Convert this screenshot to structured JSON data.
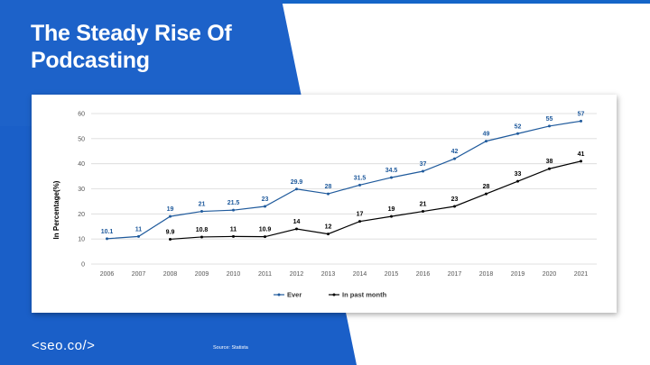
{
  "slide": {
    "title": "The Steady Rise Of Podcasting",
    "logo_text": "<seo.co/>",
    "source_text": "Source: Statista",
    "colors": {
      "brand_blue": "#1a5fc8",
      "ever_line": "#1f5a9c",
      "past_month_line": "#000000"
    }
  },
  "chart_data": {
    "type": "line",
    "title": "",
    "xlabel": "",
    "ylabel": "In Percentage(%)",
    "ylim": [
      0,
      60
    ],
    "yticks": [
      0,
      10,
      20,
      30,
      40,
      50,
      60
    ],
    "grid": true,
    "legend_position": "bottom",
    "categories": [
      "2006",
      "2007",
      "2008",
      "2009",
      "2010",
      "2011",
      "2012",
      "2013",
      "2014",
      "2015",
      "2016",
      "2017",
      "2018",
      "2019",
      "2020",
      "2021"
    ],
    "series": [
      {
        "name": "Ever",
        "color": "#1f5a9c",
        "values": [
          10.1,
          11,
          19,
          21,
          21.5,
          23,
          29.9,
          28,
          31.5,
          34.5,
          37,
          42,
          49,
          52,
          55,
          57
        ]
      },
      {
        "name": "In past month",
        "color": "#000000",
        "values": [
          null,
          null,
          9.9,
          10.8,
          11,
          10.9,
          14,
          12,
          17,
          19,
          21,
          23,
          28,
          33,
          38,
          41
        ]
      }
    ]
  }
}
